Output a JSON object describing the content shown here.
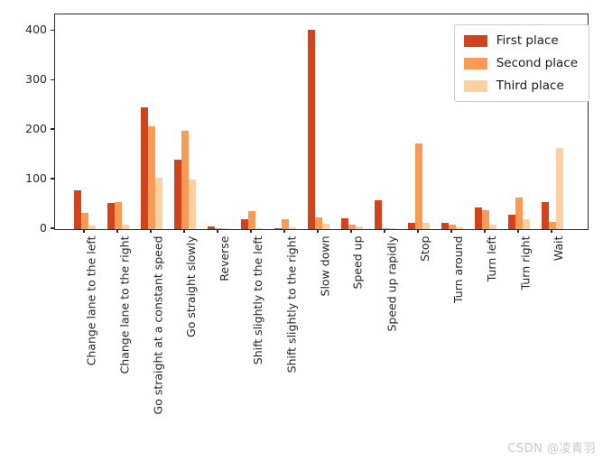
{
  "watermark": "CSDN @凌青羽",
  "colors": {
    "axis": "#2a2a2a",
    "legend_border": "#cccccc",
    "watermark_text": "#c9c9c9",
    "background": "#ffffff"
  },
  "chart_data": {
    "type": "bar",
    "title": "",
    "xlabel": "",
    "ylabel": "",
    "categories": [
      "Change lane to the left",
      "Change lane to the right",
      "Go straight at a constant speed",
      "Go straight slowly",
      "Reverse",
      "Shift slightly to the left",
      "Shift slightly to the right",
      "Slow down",
      "Speed up",
      "Speed up rapidly",
      "Stop",
      "Turn around",
      "Turn left",
      "Turn right",
      "Wait"
    ],
    "series": [
      {
        "name": "First place",
        "color": "#d2431b",
        "values": [
          78,
          52,
          245,
          140,
          5,
          20,
          1,
          403,
          22,
          58,
          12,
          12,
          44,
          29,
          55
        ]
      },
      {
        "name": "Second place",
        "color": "#f99b55",
        "values": [
          33,
          55,
          208,
          199,
          2,
          36,
          20,
          23,
          10,
          1,
          172,
          9,
          38,
          63,
          15
        ]
      },
      {
        "name": "Third place",
        "color": "#fbd1a2",
        "values": [
          8,
          10,
          104,
          101,
          1,
          2,
          4,
          11,
          5,
          1,
          12,
          4,
          9,
          20,
          163
        ]
      }
    ],
    "yticks": [
      0,
      100,
      200,
      300,
      400
    ],
    "ylim": [
      0,
      433
    ],
    "grid": false,
    "legend_position": "upper right"
  }
}
